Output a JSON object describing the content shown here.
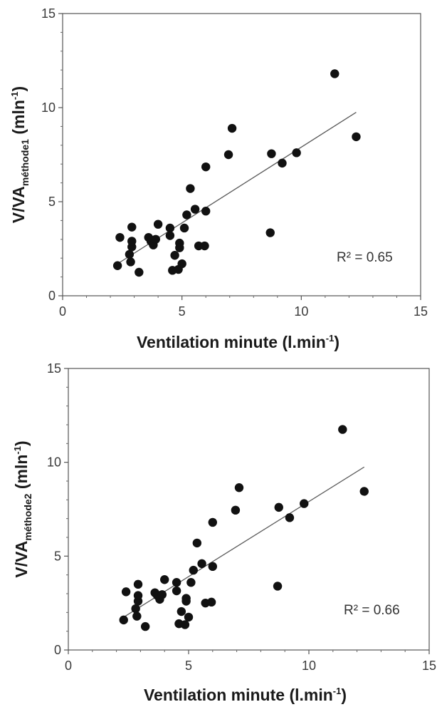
{
  "chart_data": [
    {
      "type": "scatter",
      "xlabel_main": "Ventilation minute (l.min",
      "xlabel_sup": "-1",
      "xlabel_end": ")",
      "ylabel_main": "V/VA",
      "ylabel_sub": "méthode1",
      "ylabel_unit": "(mln",
      "ylabel_sup": "-1",
      "ylabel_end": ")",
      "xlim": [
        0,
        15
      ],
      "ylim": [
        0,
        15
      ],
      "xticks": [
        "0",
        "5",
        "10",
        "15"
      ],
      "yticks": [
        "0",
        "5",
        "10",
        "15"
      ],
      "r2_label": "R² = 0.65",
      "trendline": {
        "x": [
          2.3,
          12.3
        ],
        "y": [
          1.7,
          9.75
        ]
      },
      "points": [
        [
          2.3,
          1.6
        ],
        [
          2.4,
          3.1
        ],
        [
          2.8,
          2.2
        ],
        [
          2.85,
          1.8
        ],
        [
          2.9,
          2.6
        ],
        [
          2.9,
          2.9
        ],
        [
          2.9,
          3.65
        ],
        [
          3.2,
          1.25
        ],
        [
          3.6,
          3.1
        ],
        [
          3.7,
          2.9
        ],
        [
          3.8,
          2.7
        ],
        [
          3.9,
          3.0
        ],
        [
          4.0,
          3.8
        ],
        [
          4.5,
          3.6
        ],
        [
          4.5,
          3.2
        ],
        [
          4.6,
          1.35
        ],
        [
          4.7,
          2.15
        ],
        [
          4.85,
          1.4
        ],
        [
          4.9,
          2.8
        ],
        [
          4.9,
          2.55
        ],
        [
          5.0,
          1.7
        ],
        [
          5.1,
          3.6
        ],
        [
          5.2,
          4.3
        ],
        [
          5.35,
          5.7
        ],
        [
          5.55,
          4.6
        ],
        [
          5.7,
          2.65
        ],
        [
          5.95,
          2.65
        ],
        [
          6.0,
          4.5
        ],
        [
          6.0,
          6.85
        ],
        [
          6.95,
          7.5
        ],
        [
          7.1,
          8.9
        ],
        [
          8.7,
          3.35
        ],
        [
          8.75,
          7.55
        ],
        [
          9.2,
          7.05
        ],
        [
          9.8,
          7.6
        ],
        [
          11.4,
          11.8
        ],
        [
          12.3,
          8.45
        ]
      ]
    },
    {
      "type": "scatter",
      "xlabel_main": "Ventilation minute (l.min",
      "xlabel_sup": "-1",
      "xlabel_end": ")",
      "ylabel_main": "V/VA",
      "ylabel_sub": "méthode2",
      "ylabel_unit": "(mln",
      "ylabel_sup": "-1",
      "ylabel_end": ")",
      "xlim": [
        0,
        15
      ],
      "ylim": [
        0,
        15
      ],
      "xticks": [
        "0",
        "5",
        "10",
        "15"
      ],
      "yticks": [
        "0",
        "5",
        "10",
        "15"
      ],
      "r2_label": "R² = 0.66",
      "trendline": {
        "x": [
          2.3,
          12.3
        ],
        "y": [
          1.75,
          9.75
        ]
      },
      "points": [
        [
          2.3,
          1.6
        ],
        [
          2.4,
          3.1
        ],
        [
          2.8,
          2.2
        ],
        [
          2.85,
          1.8
        ],
        [
          2.9,
          2.6
        ],
        [
          2.9,
          2.9
        ],
        [
          2.9,
          3.5
        ],
        [
          3.2,
          1.25
        ],
        [
          3.6,
          3.05
        ],
        [
          3.7,
          2.9
        ],
        [
          3.8,
          2.7
        ],
        [
          3.9,
          2.95
        ],
        [
          4.0,
          3.75
        ],
        [
          4.5,
          3.6
        ],
        [
          4.5,
          3.15
        ],
        [
          4.6,
          1.4
        ],
        [
          4.7,
          2.05
        ],
        [
          4.85,
          1.35
        ],
        [
          4.9,
          2.75
        ],
        [
          4.9,
          2.6
        ],
        [
          5.0,
          1.75
        ],
        [
          5.1,
          3.6
        ],
        [
          5.2,
          4.25
        ],
        [
          5.35,
          5.7
        ],
        [
          5.55,
          4.6
        ],
        [
          5.7,
          2.5
        ],
        [
          5.95,
          2.55
        ],
        [
          6.0,
          4.45
        ],
        [
          6.0,
          6.8
        ],
        [
          6.95,
          7.45
        ],
        [
          7.1,
          8.65
        ],
        [
          8.7,
          3.4
        ],
        [
          8.75,
          7.6
        ],
        [
          9.2,
          7.05
        ],
        [
          9.8,
          7.8
        ],
        [
          11.4,
          11.75
        ],
        [
          12.3,
          8.45
        ]
      ]
    }
  ]
}
